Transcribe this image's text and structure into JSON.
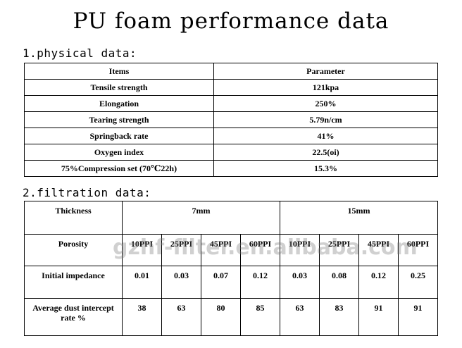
{
  "title": "PU foam performance data",
  "physical": {
    "heading": "1.physical data:",
    "headers": [
      "Items",
      "Parameter"
    ],
    "rows": [
      [
        "Tensile strength",
        "121kpa"
      ],
      [
        "Elongation",
        "250%"
      ],
      [
        "Tearing strength",
        "5.79n/cm"
      ],
      [
        "Springback rate",
        "41%"
      ],
      [
        "Oxygen index",
        "22.5(oi)"
      ],
      [
        "75%Compression set (70℃22h)",
        "15.3%"
      ]
    ]
  },
  "filtration": {
    "heading": "2.filtration data:",
    "thickness_label": "Thickness",
    "thickness_groups": [
      "7mm",
      "15mm"
    ],
    "porosity_label": "Porosity",
    "porosity": [
      "10PPI",
      "25PPI",
      "45PPI",
      "60PPI",
      "10PPI",
      "25PPI",
      "45PPI",
      "60PPI"
    ],
    "impedance_label": "Initial impedance",
    "impedance": [
      "0.01",
      "0.03",
      "0.07",
      "0.12",
      "0.03",
      "0.08",
      "0.12",
      "0.25"
    ],
    "dust_label": "Average dust intercept rate %",
    "dust": [
      "38",
      "63",
      "80",
      "85",
      "63",
      "83",
      "91",
      "91"
    ]
  },
  "watermark": "gzhf-filter.en.alibaba.com"
}
